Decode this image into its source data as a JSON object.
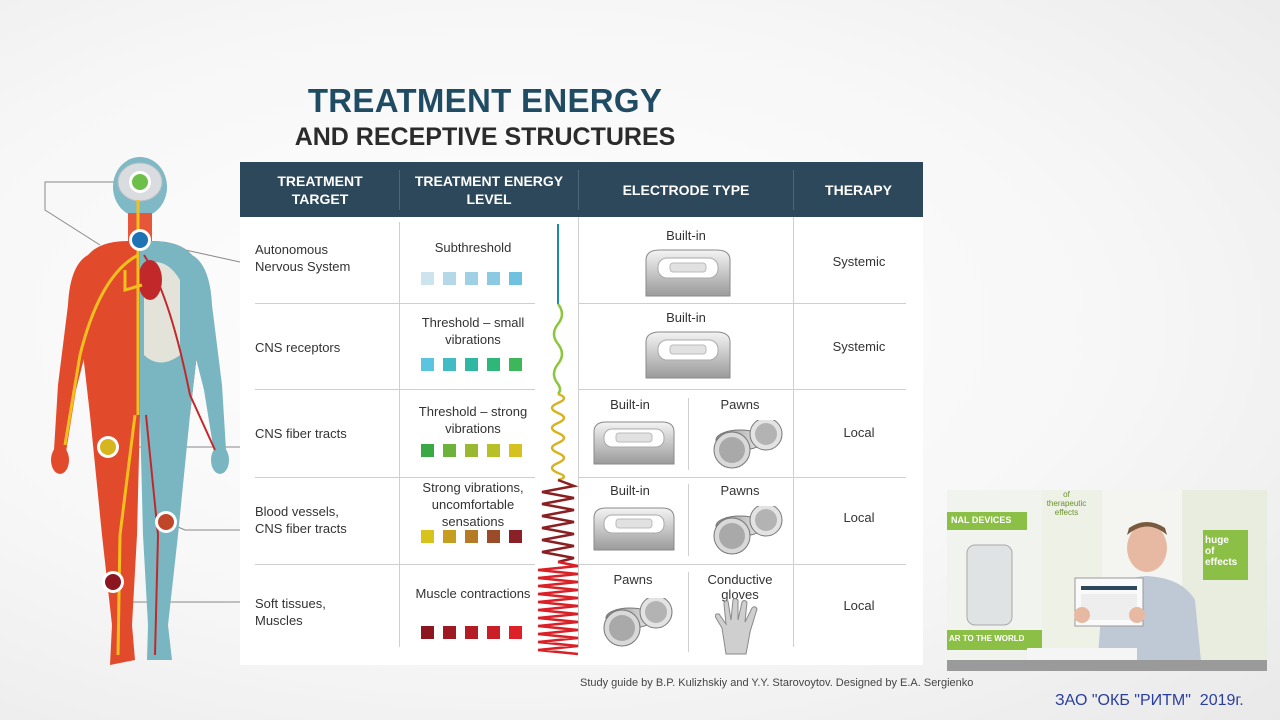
{
  "title": {
    "line1": "TREATMENT ENERGY",
    "line2": "AND RECEPTIVE STRUCTURES"
  },
  "table": {
    "headers": [
      "TREATMENT\nTARGET",
      "TREATMENT ENERGY\nLEVEL",
      "ELECTRODE TYPE",
      "THERAPY"
    ],
    "rows": [
      {
        "target": "Autonomous\nNervous System",
        "energy": "Subthreshold",
        "electrodes": [
          "Built-in"
        ],
        "therapy": "Systemic",
        "colors": [
          "#cde4ee",
          "#b3d9e9",
          "#9fd1e6",
          "#8ccae3",
          "#6ec2e0"
        ]
      },
      {
        "target": "CNS receptors",
        "energy": "Threshold – small\nvibrations",
        "electrodes": [
          "Built-in"
        ],
        "therapy": "Systemic",
        "colors": [
          "#5bc4df",
          "#42bcc4",
          "#2fb7a2",
          "#2db87a",
          "#3cb85a"
        ]
      },
      {
        "target": "CNS fiber tracts",
        "energy": "Threshold – strong\nvibrations",
        "electrodes": [
          "Built-in",
          "Pawns"
        ],
        "therapy": "Local",
        "colors": [
          "#3aa945",
          "#6db23a",
          "#98b931",
          "#b8c028",
          "#d6c21f"
        ]
      },
      {
        "target": "Blood vessels,\nCNS fiber tracts",
        "energy": "Strong vibrations,\nuncomfortable\nsensations",
        "electrodes": [
          "Built-in",
          "Pawns"
        ],
        "therapy": "Local",
        "colors": [
          "#d8c21c",
          "#c79d1f",
          "#b47a24",
          "#9c4b28",
          "#8a2028"
        ]
      },
      {
        "target": "Soft tissues,\nMuscles",
        "energy": "Muscle contractions",
        "electrodes": [
          "Pawns",
          "Conductive\ngloves"
        ],
        "therapy": "Local",
        "colors": [
          "#8b1620",
          "#9e1a22",
          "#b31c24",
          "#c91e26",
          "#de2028"
        ]
      }
    ]
  },
  "credit": "Study guide by B.P. Kulizhskiy and Y.Y. Starovoytov. Designed by E.A. Sergienko",
  "company": "ЗАО \"ОКБ \"РИТМ\"  2019г.",
  "video": {
    "banner_text": "NAL DEVICES",
    "side_text": "huge\nof effects",
    "of_therapeutic": "of\ntherapeutic\neffects",
    "bottom_text": "AR TO THE WORLD"
  }
}
